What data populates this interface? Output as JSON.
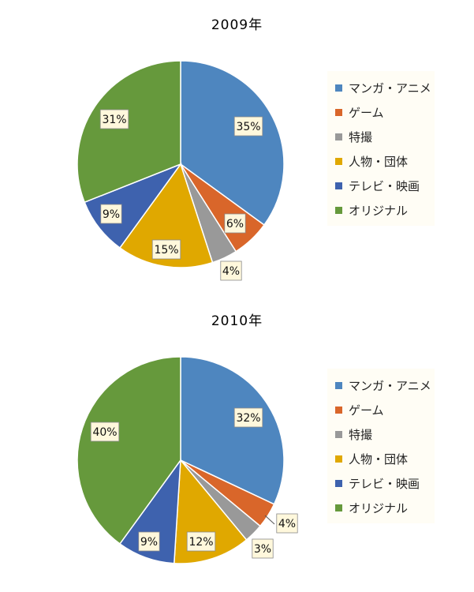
{
  "colors": {
    "manga_anime": "#4e86bf",
    "game": "#d9662a",
    "tokusatsu": "#999999",
    "person_group": "#e0a800",
    "tv_film": "#3e62ae",
    "original": "#66993c"
  },
  "chart_data": [
    {
      "type": "pie",
      "title": "2009年",
      "categories": [
        "マンガ・アニメ",
        "ゲーム",
        "特撮",
        "人物・団体",
        "テレビ・映画",
        "オリジナル"
      ],
      "values": [
        35,
        6,
        4,
        15,
        9,
        31
      ],
      "data_labels": [
        "35%",
        "6%",
        "4%",
        "15%",
        "9%",
        "31%"
      ],
      "legend": {
        "position": "right",
        "entries": [
          "マンガ・アニメ",
          "ゲーム",
          "特撮",
          "人物・団体",
          "テレビ・映画",
          "オリジナル"
        ]
      }
    },
    {
      "type": "pie",
      "title": "2010年",
      "categories": [
        "マンガ・アニメ",
        "ゲーム",
        "特撮",
        "人物・団体",
        "テレビ・映画",
        "オリジナル"
      ],
      "values": [
        32,
        4,
        3,
        12,
        9,
        40
      ],
      "data_labels": [
        "32%",
        "4%",
        "3%",
        "12%",
        "9%",
        "40%"
      ],
      "legend": {
        "position": "right",
        "entries": [
          "マンガ・アニメ",
          "ゲーム",
          "特撮",
          "人物・団体",
          "テレビ・映画",
          "オリジナル"
        ]
      }
    }
  ]
}
